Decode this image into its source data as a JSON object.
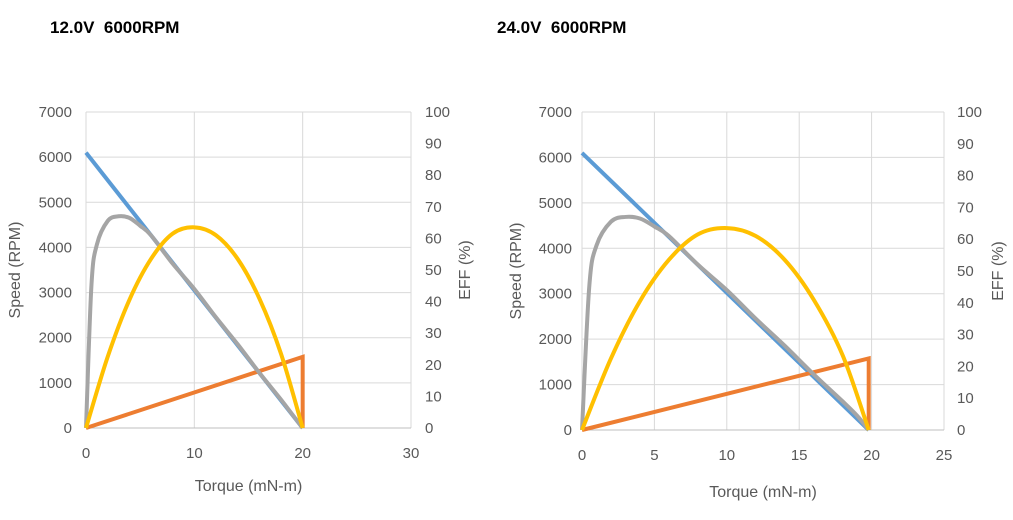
{
  "chart_data": [
    {
      "type": "line",
      "title": "12.0V  6000RPM",
      "xlabel": "Torque (mN-m)",
      "ylabel": "Speed (RPM)",
      "y2label": "EFF (%)",
      "xlim": [
        0,
        30
      ],
      "ylim": [
        0,
        7000
      ],
      "y2lim": [
        0,
        100
      ],
      "xticks": [
        "0",
        "10",
        "20",
        "30"
      ],
      "yticks": [
        "0",
        "1000",
        "2000",
        "3000",
        "4000",
        "5000",
        "6000",
        "7000"
      ],
      "y2ticks": [
        "0",
        "10",
        "20",
        "30",
        "40",
        "50",
        "60",
        "70",
        "80",
        "90",
        "100"
      ],
      "grid": true,
      "series": [
        {
          "color": "#5b9bd5",
          "axis": "left",
          "x": [
            0,
            20
          ],
          "y": [
            6100,
            0
          ]
        },
        {
          "color": "#ed7d31",
          "axis": "right",
          "x": [
            0,
            20,
            20
          ],
          "y": [
            0,
            22.5,
            0
          ]
        },
        {
          "color": "#a5a5a5",
          "axis": "right",
          "x": [
            0,
            0.5,
            1,
            2,
            3,
            4,
            5,
            6,
            8,
            10,
            12,
            14,
            16,
            18,
            19,
            20
          ],
          "y": [
            0,
            45,
            58,
            65.5,
            67,
            66.5,
            64,
            61,
            52,
            44,
            35,
            26.5,
            17.5,
            9,
            4.5,
            0
          ]
        },
        {
          "color": "#ffc000",
          "axis": "right",
          "x": [
            0,
            2,
            4,
            6,
            8,
            10,
            12,
            14,
            16,
            18,
            20
          ],
          "y": [
            0,
            22.5,
            40.5,
            53.5,
            61.5,
            63.5,
            61,
            53.5,
            41,
            23.5,
            0
          ]
        }
      ]
    },
    {
      "type": "line",
      "title": "24.0V  6000RPM",
      "xlabel": "Torque (mN-m)",
      "ylabel": "Speed (RPM)",
      "y2label": "EFF (%)",
      "xlim": [
        0,
        25
      ],
      "ylim": [
        0,
        7000
      ],
      "y2lim": [
        0,
        100
      ],
      "xticks": [
        "0",
        "5",
        "10",
        "15",
        "20",
        "25"
      ],
      "yticks": [
        "0",
        "1000",
        "2000",
        "3000",
        "4000",
        "5000",
        "6000",
        "7000"
      ],
      "y2ticks": [
        "0",
        "10",
        "20",
        "30",
        "40",
        "50",
        "60",
        "70",
        "80",
        "90",
        "100"
      ],
      "grid": true,
      "series": [
        {
          "color": "#5b9bd5",
          "axis": "left",
          "x": [
            0,
            19.8
          ],
          "y": [
            6100,
            0
          ]
        },
        {
          "color": "#ed7d31",
          "axis": "right",
          "x": [
            0,
            19.8,
            19.8
          ],
          "y": [
            0,
            22.5,
            0
          ]
        },
        {
          "color": "#a5a5a5",
          "axis": "right",
          "x": [
            0,
            0.5,
            1,
            2,
            3,
            4,
            5,
            6,
            8,
            10,
            12,
            14,
            16,
            18,
            19,
            19.8
          ],
          "y": [
            0,
            45,
            58,
            65.5,
            67,
            66.5,
            64,
            61,
            52,
            44,
            35,
            26.5,
            17.5,
            9,
            4.5,
            0
          ]
        },
        {
          "color": "#ffc000",
          "axis": "right",
          "x": [
            0,
            2,
            4,
            6,
            8,
            10,
            12,
            14,
            16,
            18,
            19.8
          ],
          "y": [
            0,
            22.5,
            40.5,
            53.5,
            61.5,
            63.5,
            61,
            53.5,
            41,
            23.5,
            0
          ]
        }
      ]
    }
  ]
}
